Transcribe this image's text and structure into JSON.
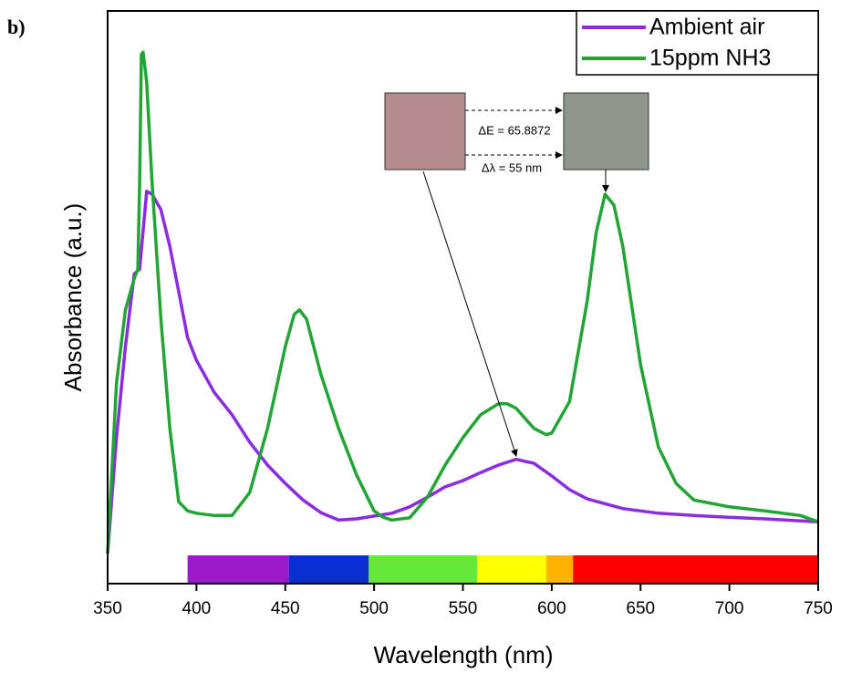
{
  "chart_data": {
    "type": "line",
    "panel_label": "b)",
    "xlabel": "Wavelength (nm)",
    "ylabel": "Absorbance (a.u.)",
    "xlim": [
      350,
      750
    ],
    "xticks": [
      350,
      400,
      450,
      500,
      550,
      600,
      650,
      700,
      750
    ],
    "ylim": [
      0,
      1
    ],
    "legend": "upper right",
    "series": [
      {
        "name": "Ambient air",
        "color": "#8b2be2",
        "x": [
          350,
          355,
          360,
          365,
          368,
          372,
          375,
          380,
          385,
          390,
          395,
          400,
          410,
          420,
          430,
          440,
          450,
          460,
          470,
          480,
          490,
          500,
          510,
          520,
          530,
          540,
          550,
          560,
          570,
          580,
          590,
          600,
          610,
          620,
          640,
          660,
          680,
          700,
          720,
          750
        ],
        "values": [
          0.053,
          0.255,
          0.414,
          0.541,
          0.549,
          0.685,
          0.68,
          0.653,
          0.589,
          0.51,
          0.43,
          0.39,
          0.334,
          0.295,
          0.247,
          0.207,
          0.175,
          0.146,
          0.124,
          0.111,
          0.113,
          0.118,
          0.123,
          0.134,
          0.151,
          0.169,
          0.18,
          0.194,
          0.207,
          0.217,
          0.21,
          0.188,
          0.164,
          0.148,
          0.131,
          0.123,
          0.119,
          0.116,
          0.113,
          0.108
        ]
      },
      {
        "name": "15ppm NH3",
        "color": "#22a535",
        "x": [
          350,
          355,
          360,
          365,
          367,
          368,
          369,
          370,
          372,
          375,
          380,
          385,
          390,
          395,
          400,
          410,
          420,
          430,
          440,
          450,
          455,
          458,
          462,
          470,
          480,
          490,
          500,
          505,
          510,
          520,
          530,
          540,
          550,
          560,
          570,
          575,
          580,
          590,
          597,
          600,
          610,
          620,
          625,
          630,
          635,
          640,
          650,
          660,
          670,
          680,
          700,
          720,
          740,
          750
        ],
        "values": [
          0.053,
          0.35,
          0.478,
          0.533,
          0.549,
          0.701,
          0.924,
          0.928,
          0.876,
          0.701,
          0.462,
          0.271,
          0.143,
          0.127,
          0.123,
          0.119,
          0.119,
          0.159,
          0.271,
          0.414,
          0.47,
          0.478,
          0.462,
          0.366,
          0.271,
          0.191,
          0.127,
          0.116,
          0.111,
          0.115,
          0.151,
          0.207,
          0.255,
          0.295,
          0.314,
          0.314,
          0.306,
          0.271,
          0.26,
          0.263,
          0.318,
          0.494,
          0.613,
          0.68,
          0.661,
          0.589,
          0.382,
          0.239,
          0.175,
          0.146,
          0.134,
          0.127,
          0.119,
          0.108
        ]
      }
    ],
    "spectrum_bands": [
      {
        "start": 395,
        "end": 452,
        "color": "#9b19c9"
      },
      {
        "start": 452,
        "end": 497,
        "color": "#0a2fd0"
      },
      {
        "start": 497,
        "end": 558,
        "color": "#66e83a"
      },
      {
        "start": 558,
        "end": 597,
        "color": "#ffff00"
      },
      {
        "start": 597,
        "end": 612,
        "color": "#ffb300"
      },
      {
        "start": 612,
        "end": 750,
        "color": "#ff0000"
      }
    ],
    "annotations": [
      "ΔE = 65.8872",
      "Δλ = 55 nm"
    ]
  }
}
